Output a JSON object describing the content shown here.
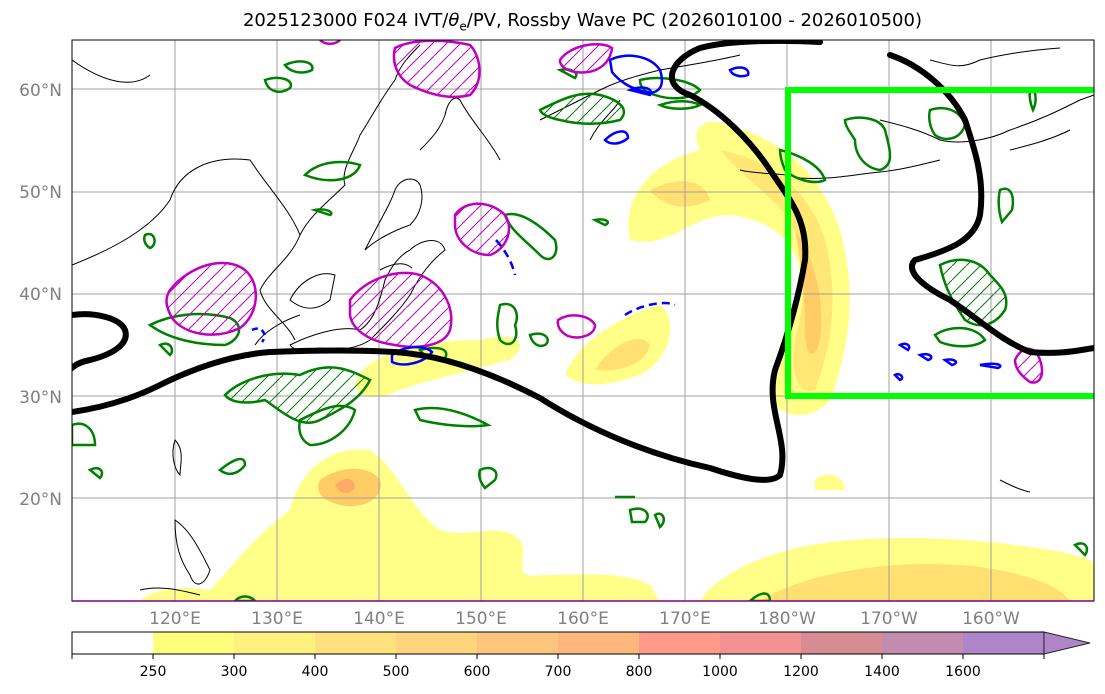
{
  "title": {
    "prefix": "2025123000 F024 IVT/",
    "theta": "θ",
    "theta_sub": "e",
    "suffix": "/PV, Rossby Wave PC (2026010100 - 2026010500)"
  },
  "latitude_labels": [
    "20°N",
    "30°N",
    "40°N",
    "50°N",
    "60°N"
  ],
  "longitude_labels": [
    "120°E",
    "130°E",
    "140°E",
    "150°E",
    "160°E",
    "170°E",
    "180°W",
    "170°W",
    "160°W"
  ],
  "colorbar": {
    "ticks": [
      "250",
      "300",
      "400",
      "500",
      "600",
      "700",
      "800",
      "1000",
      "1200",
      "1400",
      "1600"
    ],
    "colors": [
      "#ffff66",
      "#ffee66",
      "#ffdd66",
      "#ffcc66",
      "#ffbb66",
      "#ffaa66",
      "#ff8877",
      "#f08080",
      "#d07880",
      "#b878a0",
      "#a070c0"
    ],
    "extend": "max"
  },
  "legend_colors": {
    "ivt_fill": "#ffee55",
    "rossby_pc": "#000000",
    "theta_e": "#008000",
    "pv_positive": "#c000c0",
    "pv_negative": "#0000ff",
    "target_box": "#00ff00"
  }
}
